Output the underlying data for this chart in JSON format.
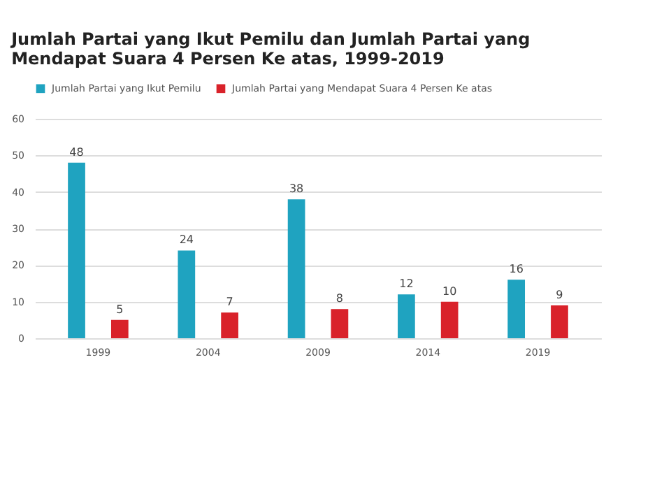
{
  "chart_data": {
    "type": "bar",
    "title": "Jumlah Partai yang Ikut Pemilu dan Jumlah Partai yang Mendapat Suara 4 Persen Ke atas, 1999-2019",
    "categories": [
      "1999",
      "2004",
      "2009",
      "2014",
      "2019"
    ],
    "series": [
      {
        "name": "Jumlah Partai yang Ikut Pemilu",
        "color": "#1fa3c0",
        "values": [
          48,
          24,
          38,
          12,
          16
        ]
      },
      {
        "name": "Jumlah Partai yang Mendapat Suara 4 Persen Ke atas",
        "color": "#d9222a",
        "values": [
          5,
          7,
          8,
          10,
          9
        ]
      }
    ],
    "ylim": [
      0,
      60
    ],
    "yticks": [
      0,
      10,
      20,
      30,
      40,
      50,
      60
    ],
    "grid": "y",
    "legend": "top left",
    "data_labels": true
  }
}
